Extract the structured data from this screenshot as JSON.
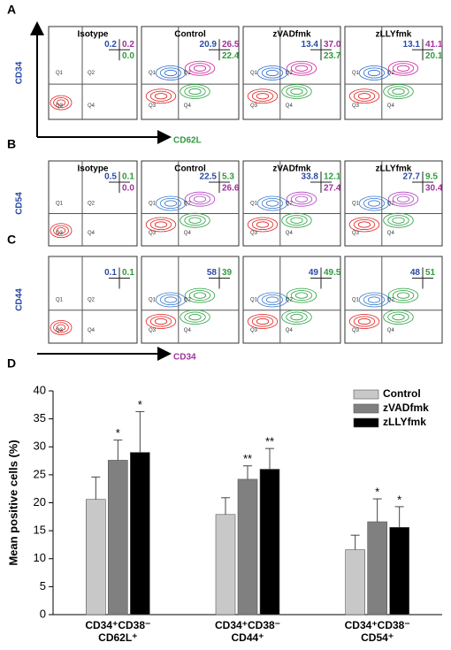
{
  "flow_panels": [
    {
      "label": "A",
      "y_axis_label": "CD34",
      "x_axis_label": "CD62L",
      "y_axis_color": "#2b4aa6",
      "x_axis_color": "#2e9a3c",
      "value_colors": [
        "#2b4aa6",
        "#a0309c",
        "#2e9a3c"
      ],
      "plots": [
        {
          "title": "Isotype",
          "values": [
            "0.2",
            "0.2",
            "0.0"
          ]
        },
        {
          "title": "Control",
          "values": [
            "20.9",
            "26.5",
            "22.4"
          ]
        },
        {
          "title": "zVADfmk",
          "values": [
            "13.4",
            "37.0",
            "23.7"
          ]
        },
        {
          "title": "zLLYfmk",
          "values": [
            "13.1",
            "41.1",
            "20.1"
          ]
        }
      ]
    },
    {
      "label": "B",
      "y_axis_label": "CD54",
      "y_axis_color": "#2b4aa6",
      "value_colors": [
        "#2b4aa6",
        "#2e9a3c",
        "#a0309c"
      ],
      "plots": [
        {
          "title": "Isotype",
          "values": [
            "0.5",
            "0.1",
            "0.0"
          ]
        },
        {
          "title": "Control",
          "values": [
            "22.5",
            "5.3",
            "26.6"
          ]
        },
        {
          "title": "zVADfmk",
          "values": [
            "33.8",
            "12.1",
            "27.4"
          ]
        },
        {
          "title": "zLLYfmk",
          "values": [
            "27.7",
            "9.5",
            "30.4"
          ]
        }
      ]
    },
    {
      "label": "C",
      "y_axis_label": "CD44",
      "x_axis_label": "CD34",
      "y_axis_color": "#2b4aa6",
      "x_axis_color": "#a0309c",
      "value_colors": [
        "#2b4aa6",
        "#2e9a3c"
      ],
      "plots": [
        {
          "values": [
            "0.1",
            "0.1"
          ]
        },
        {
          "values": [
            "58",
            "39"
          ]
        },
        {
          "values": [
            "49",
            "49.5"
          ]
        },
        {
          "values": [
            "48",
            "51"
          ]
        }
      ]
    }
  ],
  "quadrant_labels": [
    "Q1",
    "Q2",
    "Q3",
    "Q4"
  ],
  "chart_data": {
    "type": "bar",
    "panel_label": "D",
    "y_label": "Mean positive cells (%)",
    "categories": [
      "CD34⁺CD38⁻ CD62L⁺",
      "CD34⁺CD38⁻ CD44⁺",
      "CD34⁺CD38⁻ CD54⁺"
    ],
    "series": [
      {
        "name": "Control",
        "color": "#c8c8c8",
        "values": [
          20.6,
          17.9,
          11.6
        ],
        "errors": [
          4.0,
          3.0,
          2.6
        ],
        "significance": [
          null,
          null,
          null
        ]
      },
      {
        "name": "zVADfmk",
        "color": "#808080",
        "values": [
          27.6,
          24.2,
          16.6
        ],
        "errors": [
          3.6,
          2.4,
          4.1
        ],
        "significance": [
          "*",
          "**",
          "*"
        ]
      },
      {
        "name": "zLLYfmk",
        "color": "#000000",
        "values": [
          29.0,
          26.0,
          15.6
        ],
        "errors": [
          7.3,
          3.7,
          3.7
        ],
        "significance": [
          "*",
          "**",
          "*"
        ]
      }
    ],
    "ylim": [
      0,
      40
    ],
    "yticks": [
      0,
      5,
      10,
      15,
      20,
      25,
      30,
      35,
      40
    ],
    "legend": "top-right"
  }
}
